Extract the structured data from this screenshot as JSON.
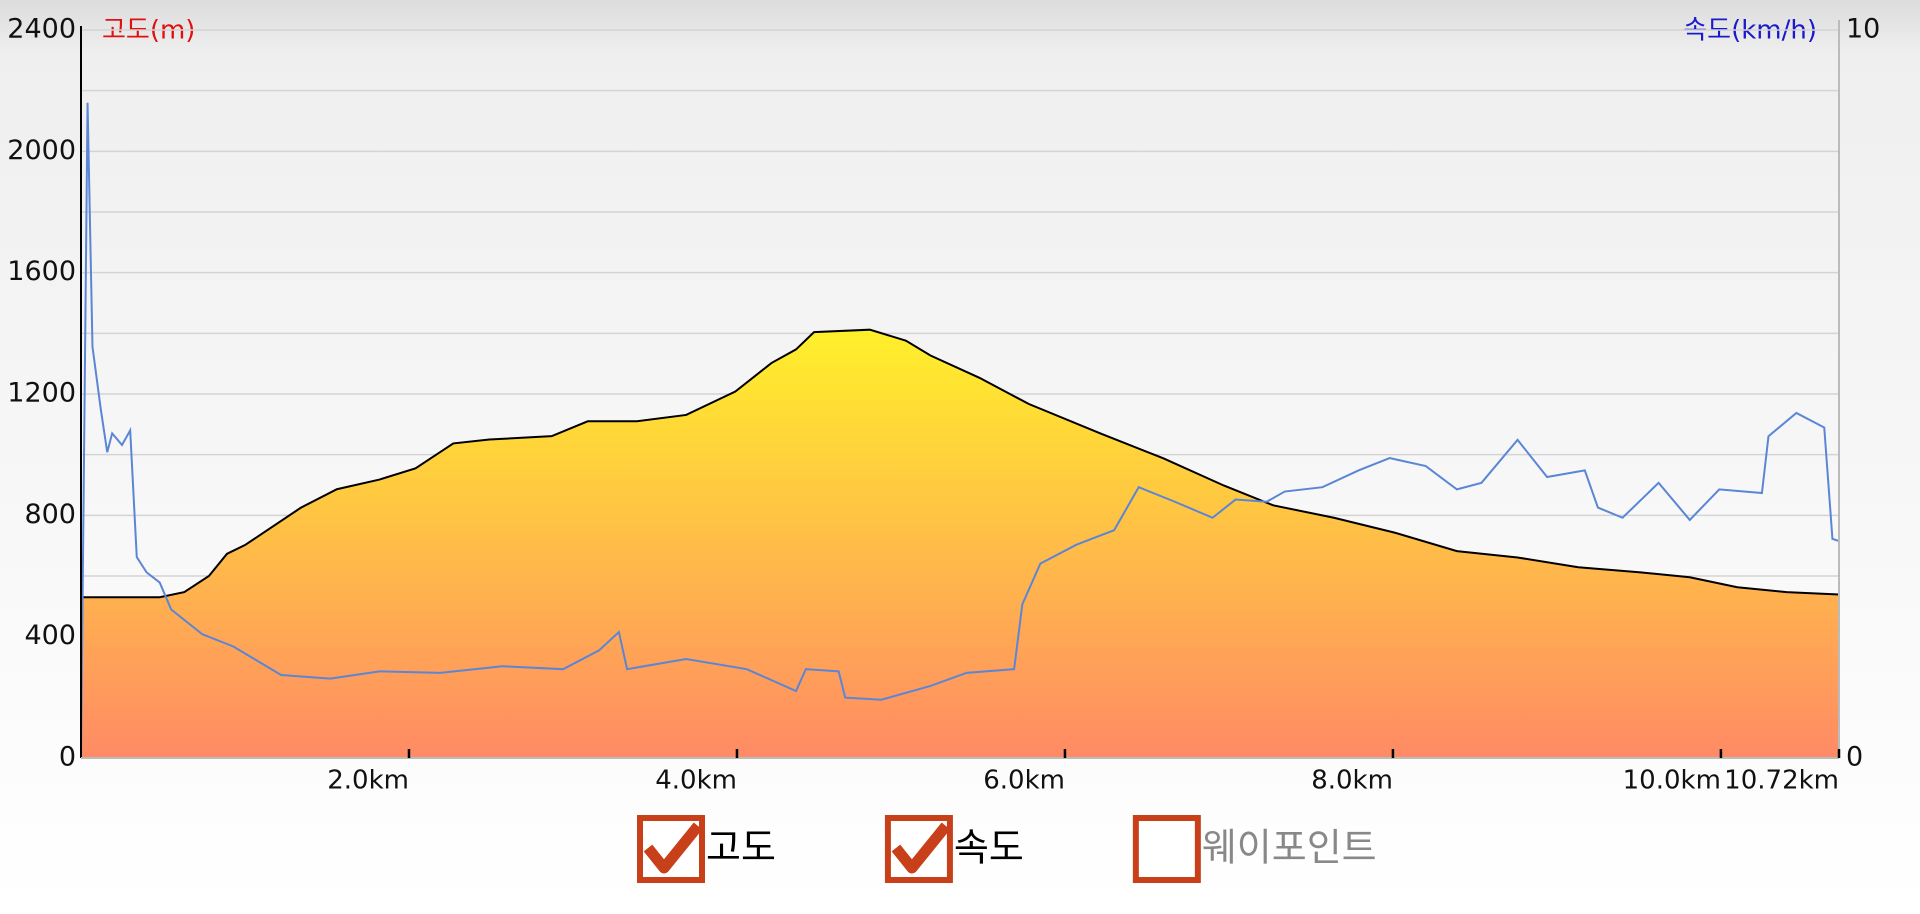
{
  "chart_data": {
    "type": "area-line",
    "y_label": "고도(m)",
    "y2_label": "속도(km/h)",
    "xlim": [
      0,
      10.72
    ],
    "xticks": [
      {
        "value": 2,
        "label": "2.0km"
      },
      {
        "value": 4,
        "label": "4.0km"
      },
      {
        "value": 6,
        "label": "6.0km"
      },
      {
        "value": 8,
        "label": "8.0km"
      },
      {
        "value": 10,
        "label": "10.0km"
      },
      {
        "value": 10.72,
        "label": "10.72km"
      }
    ],
    "ylim": [
      0,
      2400
    ],
    "yticks": [
      0,
      400,
      800,
      1200,
      1600,
      2000,
      2400
    ],
    "yminorticks": [
      200,
      600,
      1000,
      1400,
      1800,
      2200
    ],
    "y2lim": [
      0,
      10
    ],
    "y2ticks": [
      0,
      10
    ],
    "grid": true,
    "series": [
      {
        "name": "고도",
        "type": "area",
        "color": "#000000",
        "fill": [
          "#fff02a",
          "#ff8a65"
        ],
        "x": [
          0,
          0.48,
          0.63,
          0.78,
          0.89,
          1.0,
          1.34,
          1.56,
          1.82,
          2.04,
          2.27,
          2.49,
          2.87,
          3.09,
          3.39,
          3.69,
          3.99,
          4.21,
          4.36,
          4.47,
          4.81,
          5.03,
          5.18,
          5.48,
          5.78,
          6.22,
          6.6,
          6.97,
          7.27,
          7.64,
          8.01,
          8.39,
          8.76,
          9.13,
          9.51,
          9.81,
          10.1,
          10.4,
          10.72
        ],
        "values": [
          530,
          530,
          547,
          600,
          673,
          702,
          825,
          886,
          918,
          955,
          1037,
          1050,
          1061,
          1110,
          1110,
          1131,
          1208,
          1302,
          1347,
          1404,
          1412,
          1376,
          1327,
          1253,
          1167,
          1069,
          988,
          898,
          833,
          792,
          743,
          682,
          661,
          629,
          612,
          596,
          563,
          547,
          539
        ]
      },
      {
        "name": "속도",
        "type": "line",
        "axis": "y2",
        "color": "#5b86d6",
        "x": [
          0,
          0.04,
          0.07,
          0.12,
          0.16,
          0.19,
          0.25,
          0.3,
          0.34,
          0.4,
          0.48,
          0.55,
          0.74,
          0.93,
          1.22,
          1.52,
          1.82,
          2.19,
          2.57,
          2.94,
          3.16,
          3.28,
          3.33,
          3.69,
          4.06,
          4.36,
          4.42,
          4.62,
          4.66,
          4.88,
          5.18,
          5.4,
          5.69,
          5.74,
          5.85,
          6.07,
          6.3,
          6.45,
          6.67,
          6.9,
          7.04,
          7.23,
          7.34,
          7.57,
          7.79,
          7.98,
          8.2,
          8.39,
          8.54,
          8.76,
          8.94,
          9.17,
          9.25,
          9.4,
          9.62,
          9.81,
          9.99,
          10.25,
          10.29,
          10.46,
          10.63,
          10.68,
          10.72
        ],
        "values": [
          0,
          9.0,
          5.65,
          4.8,
          4.2,
          4.46,
          4.3,
          4.5,
          2.76,
          2.55,
          2.41,
          2.04,
          1.7,
          1.53,
          1.14,
          1.09,
          1.19,
          1.17,
          1.26,
          1.22,
          1.48,
          1.73,
          1.22,
          1.36,
          1.22,
          0.92,
          1.22,
          1.19,
          0.83,
          0.8,
          0.99,
          1.17,
          1.22,
          2.11,
          2.67,
          2.93,
          3.13,
          3.72,
          3.52,
          3.3,
          3.55,
          3.52,
          3.66,
          3.72,
          3.95,
          4.12,
          4.01,
          3.69,
          3.78,
          4.37,
          3.86,
          3.95,
          3.44,
          3.3,
          3.78,
          3.27,
          3.69,
          3.64,
          4.42,
          4.74,
          4.54,
          3.01,
          2.98
        ]
      }
    ],
    "legend": [
      {
        "label": "고도",
        "checked": true
      },
      {
        "label": "속도",
        "checked": true
      },
      {
        "label": "웨이포인트",
        "checked": false
      }
    ]
  }
}
